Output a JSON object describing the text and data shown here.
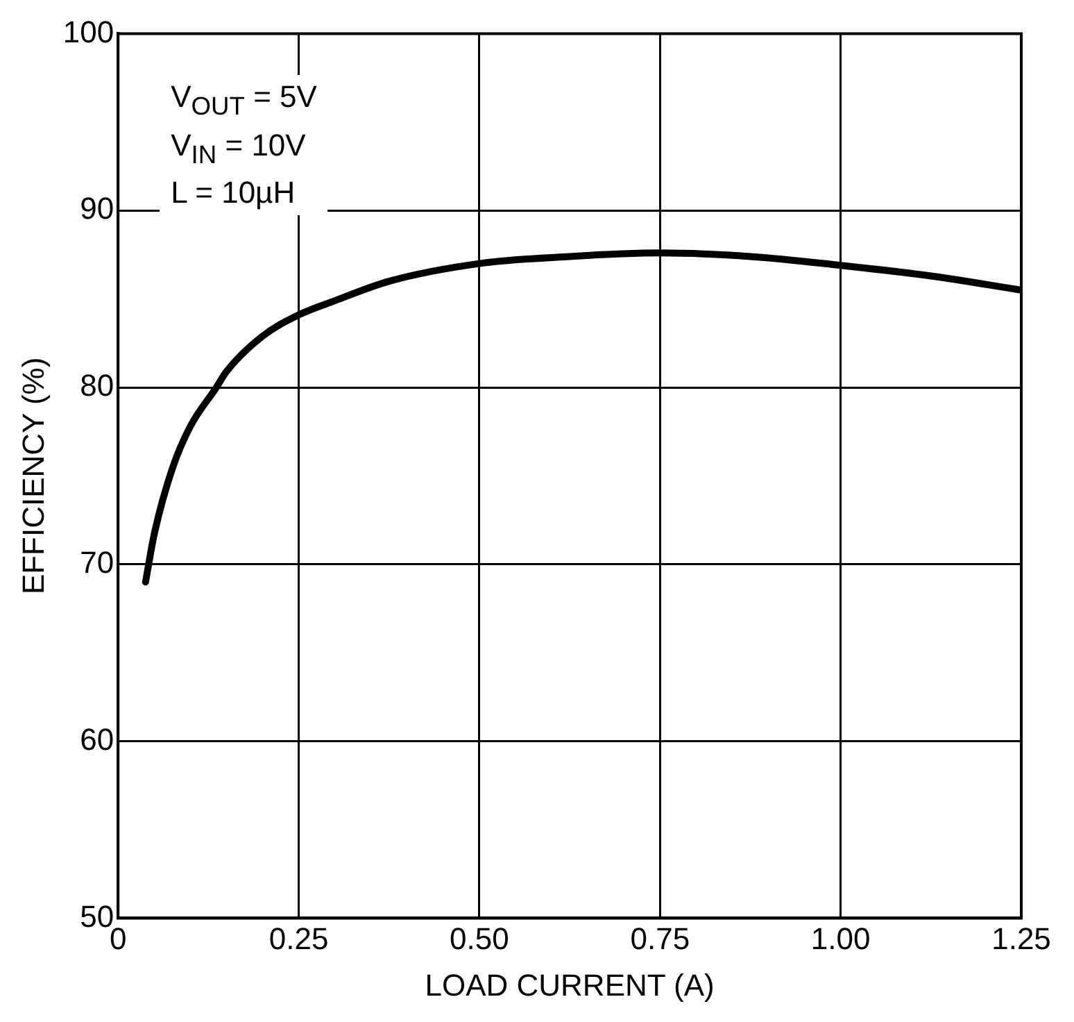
{
  "chart_data": {
    "type": "line",
    "xlabel": "LOAD CURRENT (A)",
    "ylabel": "EFFICIENCY (%)",
    "annotations": [
      "V$_{OUT}$ = 5V",
      "V$_{IN}$ = 10V",
      "L = 10µH"
    ],
    "x": [
      0.038,
      0.05,
      0.075,
      0.1,
      0.136,
      0.15,
      0.2,
      0.25,
      0.3,
      0.375,
      0.5,
      0.625,
      0.75,
      0.875,
      1.0,
      1.125,
      1.25
    ],
    "series": [
      {
        "color": "#000000",
        "values": [
          69,
          71.7,
          75.4,
          77.8,
          80,
          80.9,
          82.9,
          84.1,
          84.9,
          86,
          87,
          87.4,
          87.6,
          87.4,
          86.9,
          86.3,
          85.5
        ]
      }
    ],
    "xlim": [
      0,
      1.25
    ],
    "xticks": [
      0,
      0.25,
      {
        "value": 0.5,
        "label": "0.50"
      },
      0.75,
      {
        "value": 1,
        "label": "1.00"
      },
      1.25
    ],
    "ylim": [
      50,
      100
    ],
    "yticks": [
      50,
      60,
      70,
      80,
      90,
      100
    ],
    "grid": true,
    "legend": false,
    "marker": "none",
    "line_style": "solid"
  }
}
